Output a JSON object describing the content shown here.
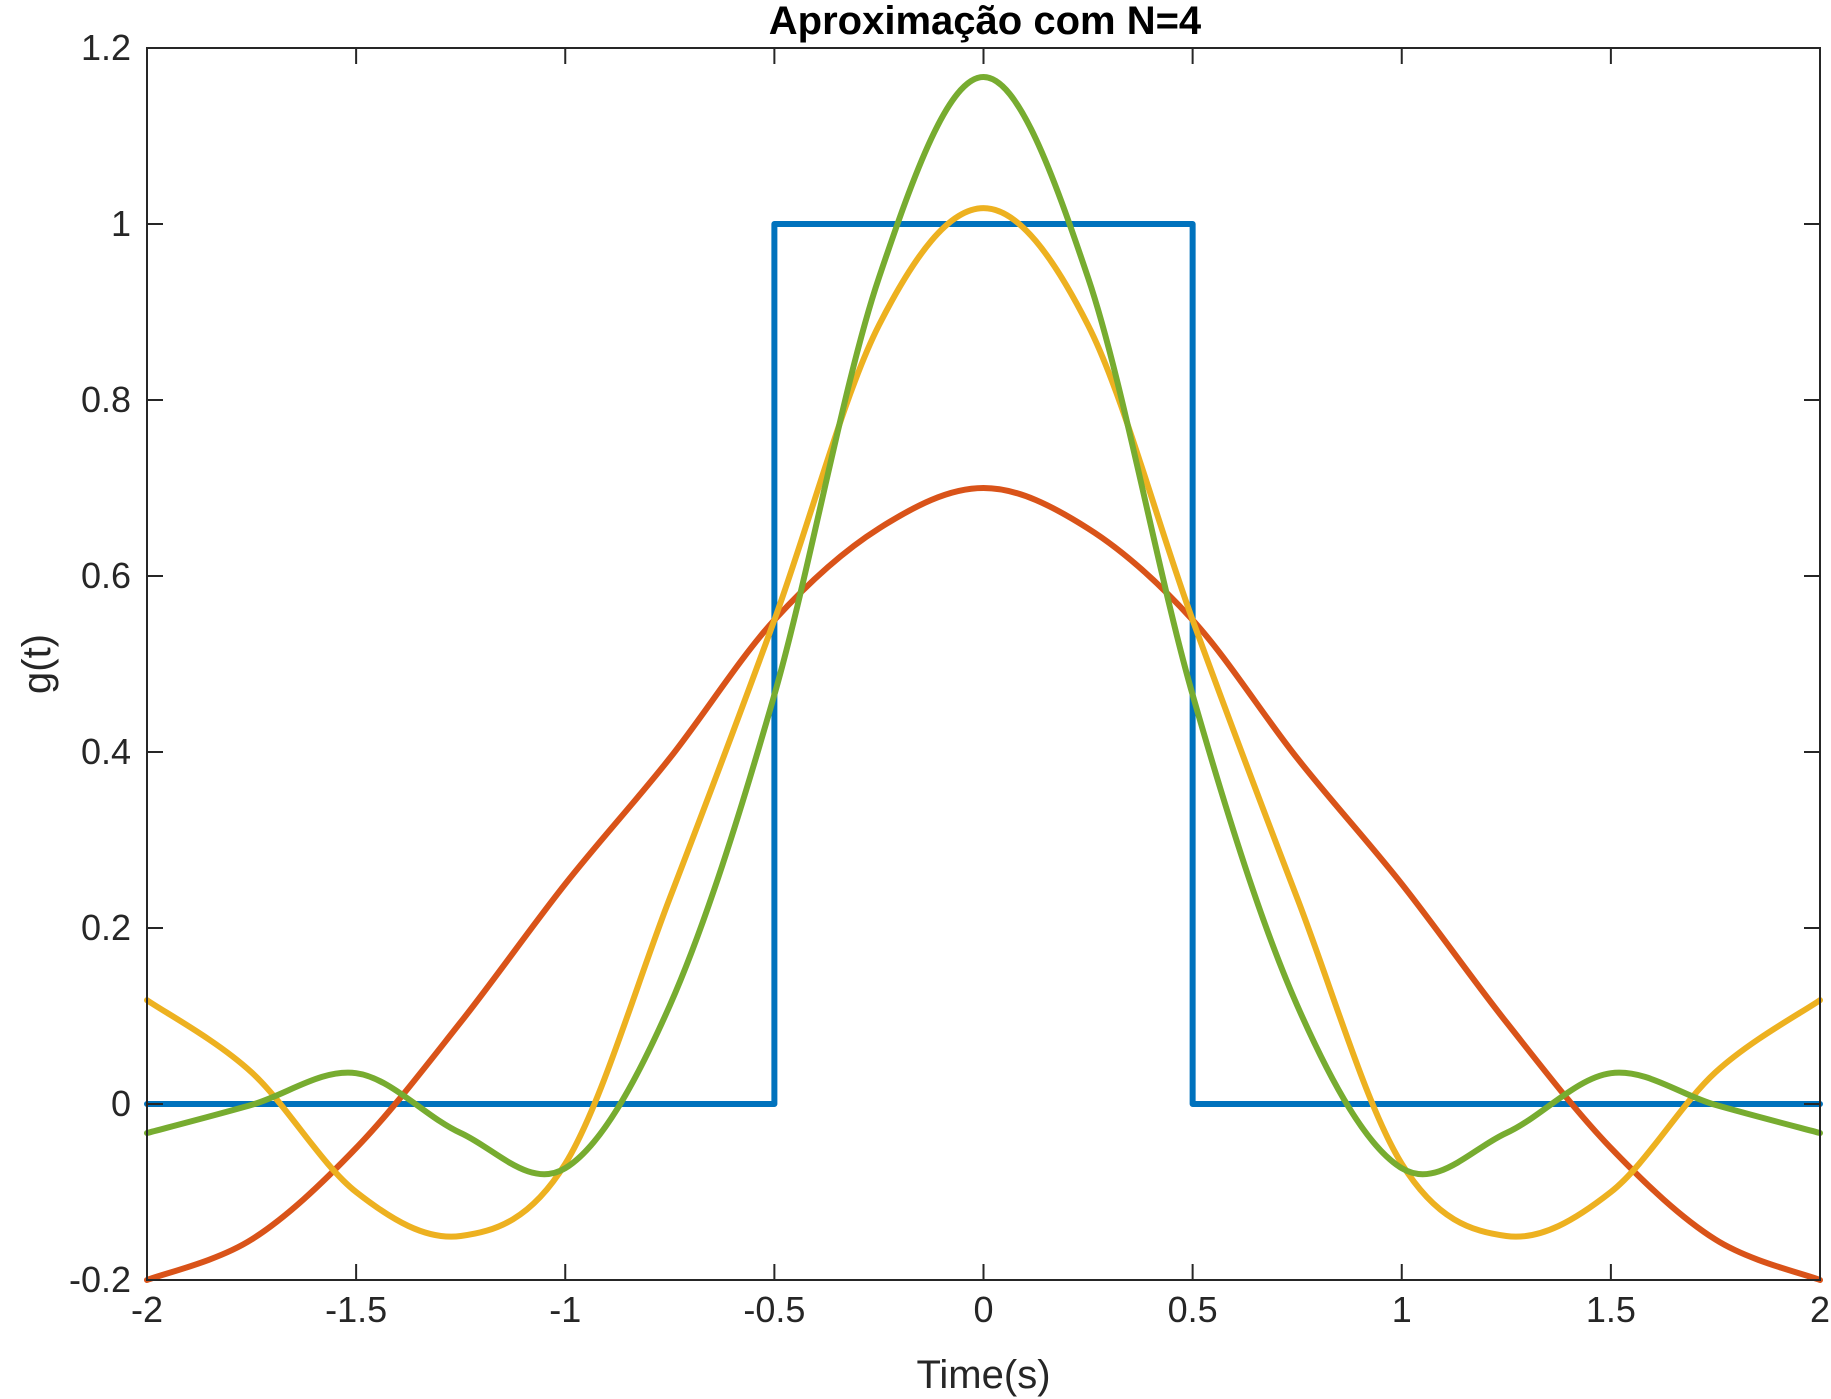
{
  "chart_data": {
    "type": "line",
    "title": "Aproximação com N=4",
    "xlabel": "Time(s)",
    "ylabel": "g(t)",
    "xlim": [
      -2,
      2
    ],
    "ylim": [
      -0.2,
      1.2
    ],
    "xticks": [
      -2,
      -1.5,
      -1,
      -0.5,
      0,
      0.5,
      1,
      1.5,
      2
    ],
    "xtick_labels": [
      "-2",
      "-1.5",
      "-1",
      "-0.5",
      "0",
      "0.5",
      "1",
      "1.5",
      "2"
    ],
    "yticks": [
      -0.2,
      0,
      0.2,
      0.4,
      0.6,
      0.8,
      1,
      1.2
    ],
    "ytick_labels": [
      "-0.2",
      "0",
      "0.2",
      "0.4",
      "0.6",
      "0.8",
      "1",
      "1.2"
    ],
    "grid": false,
    "box": true,
    "series": [
      {
        "color": "#0072BD",
        "x": [
          -2,
          -0.5,
          -0.5,
          0.5,
          0.5,
          2
        ],
        "y": [
          0,
          0,
          1,
          1,
          0,
          0
        ]
      },
      {
        "color": "#D95319",
        "x": [
          -2,
          -1.75,
          -1.5,
          -1.25,
          -1,
          -0.75,
          -0.5,
          -0.25,
          0,
          0.25,
          0.5,
          0.75,
          1,
          1.25,
          1.5,
          1.75,
          2
        ],
        "y": [
          -0.2,
          -0.154,
          -0.05,
          0.093,
          0.25,
          0.393,
          0.55,
          0.654,
          0.7,
          0.654,
          0.55,
          0.393,
          0.25,
          0.093,
          -0.05,
          -0.154,
          -0.2
        ]
      },
      {
        "color": "#EDB120",
        "x": [
          -2,
          -1.75,
          -1.5,
          -1.25,
          -1,
          -0.75,
          -0.5,
          -0.25,
          0,
          0.25,
          0.5,
          0.75,
          1,
          1.25,
          1.5,
          1.75,
          2
        ],
        "y": [
          0.118,
          0.036,
          -0.1,
          -0.15,
          -0.068,
          0.234,
          0.55,
          0.885,
          1.018,
          0.885,
          0.55,
          0.234,
          -0.068,
          -0.15,
          -0.1,
          0.036,
          0.118
        ],
        "note": ""
      },
      {
        "color": "#77AC30",
        "x": [
          -2,
          -1.75,
          -1.5,
          -1.25,
          -1,
          -0.75,
          -0.5,
          -0.25,
          0,
          0.25,
          0.5,
          0.75,
          1,
          1.25,
          1.5,
          1.75,
          2
        ],
        "y": [
          -0.033,
          -0.001,
          0.035,
          -0.033,
          -0.073,
          0.112,
          0.465,
          0.939,
          1.167,
          0.939,
          0.465,
          0.112,
          -0.073,
          -0.033,
          0.035,
          -0.001,
          -0.033
        ]
      }
    ]
  }
}
